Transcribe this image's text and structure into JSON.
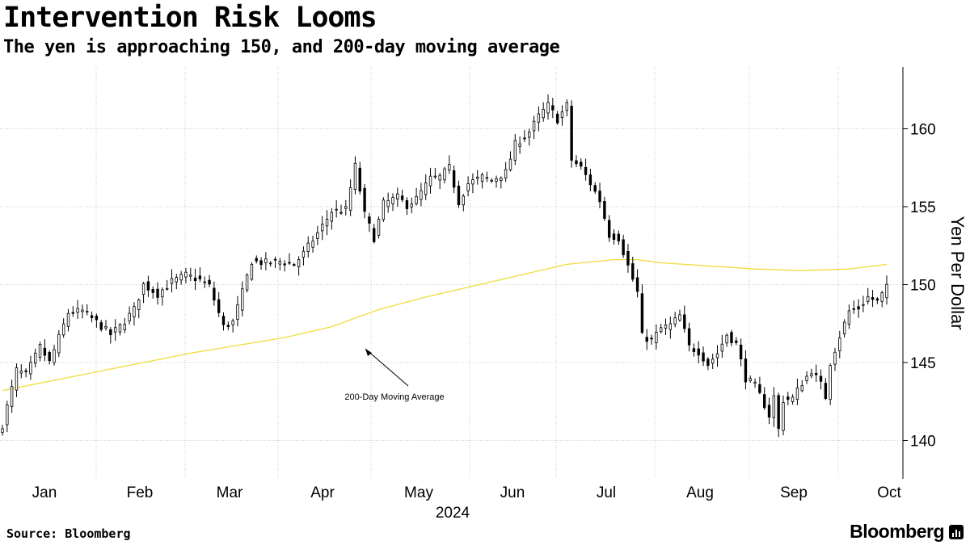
{
  "header": {
    "title": "Intervention Risk Looms",
    "subtitle": "The yen is approaching 150, and 200-day moving average"
  },
  "footer": {
    "source": "Source: Bloomberg",
    "brand": "Bloomberg"
  },
  "colors": {
    "candles": "#000000",
    "moving_average": "#f0dc3c",
    "grid": "#c8c8c8"
  },
  "chart_data": {
    "type": "candlestick",
    "title": "Intervention Risk Looms",
    "subtitle": "The yen is approaching 150, and 200-day moving average",
    "xlabel": "2024",
    "ylabel": "Yen Per Dollar",
    "ylim": [
      137.5,
      164
    ],
    "yticks": [
      140,
      145,
      150,
      155,
      160
    ],
    "months": [
      "Jan",
      "Feb",
      "Mar",
      "Apr",
      "May",
      "Jun",
      "Jul",
      "Aug",
      "Sep",
      "Oct"
    ],
    "year_label": "2024",
    "grid": "dotted",
    "annotation": "200-Day Moving Average",
    "anchors": [
      [
        0,
        141.0
      ],
      [
        3,
        144.5
      ],
      [
        5,
        144.2
      ],
      [
        8,
        146.0
      ],
      [
        10,
        145.0
      ],
      [
        14,
        148.2
      ],
      [
        17,
        148.3
      ],
      [
        20,
        147.6
      ],
      [
        23,
        146.8
      ],
      [
        25,
        147.3
      ],
      [
        28,
        148.4
      ],
      [
        30,
        150.0
      ],
      [
        33,
        149.4
      ],
      [
        36,
        150.2
      ],
      [
        39,
        150.6
      ],
      [
        42,
        150.3
      ],
      [
        44,
        149.9
      ],
      [
        47,
        147.3
      ],
      [
        49,
        147.6
      ],
      [
        51,
        149.5
      ],
      [
        53,
        151.5
      ],
      [
        56,
        151.4
      ],
      [
        59,
        151.5
      ],
      [
        62,
        151.3
      ],
      [
        64,
        152.0
      ],
      [
        67,
        153.3
      ],
      [
        70,
        154.7
      ],
      [
        73,
        154.8
      ],
      [
        75,
        157.6
      ],
      [
        77,
        154.5
      ],
      [
        79,
        153.0
      ],
      [
        81,
        155.2
      ],
      [
        84,
        155.6
      ],
      [
        86,
        155.1
      ],
      [
        88,
        155.5
      ],
      [
        91,
        156.8
      ],
      [
        93,
        156.9
      ],
      [
        95,
        157.5
      ],
      [
        97,
        155.3
      ],
      [
        99,
        156.5
      ],
      [
        102,
        156.9
      ],
      [
        104,
        156.7
      ],
      [
        107,
        157.2
      ],
      [
        109,
        159.0
      ],
      [
        112,
        159.8
      ],
      [
        114,
        160.8
      ],
      [
        116,
        161.5
      ],
      [
        118,
        160.6
      ],
      [
        120,
        161.5
      ],
      [
        121,
        158.0
      ],
      [
        123,
        157.5
      ],
      [
        125,
        156.5
      ],
      [
        127,
        155.4
      ],
      [
        129,
        153.2
      ],
      [
        131,
        153.0
      ],
      [
        133,
        151.2
      ],
      [
        135,
        149.5
      ],
      [
        136,
        146.7
      ],
      [
        138,
        146.4
      ],
      [
        140,
        147.2
      ],
      [
        142,
        147.4
      ],
      [
        144,
        148.0
      ],
      [
        146,
        146.0
      ],
      [
        148,
        145.7
      ],
      [
        150,
        144.9
      ],
      [
        152,
        145.6
      ],
      [
        154,
        146.8
      ],
      [
        156,
        146.2
      ],
      [
        158,
        144.0
      ],
      [
        160,
        143.5
      ],
      [
        162,
        142.3
      ],
      [
        163,
        141.6
      ],
      [
        164,
        142.8
      ],
      [
        165,
        140.7
      ],
      [
        166,
        142.6
      ],
      [
        168,
        142.7
      ],
      [
        170,
        143.7
      ],
      [
        172,
        144.5
      ],
      [
        174,
        143.6
      ],
      [
        175,
        142.8
      ],
      [
        176,
        145.0
      ],
      [
        178,
        146.7
      ],
      [
        180,
        148.3
      ],
      [
        182,
        148.5
      ],
      [
        184,
        149.2
      ],
      [
        186,
        148.9
      ],
      [
        188,
        149.8
      ]
    ],
    "moving_average": [
      [
        0,
        143.2
      ],
      [
        20,
        144.4
      ],
      [
        40,
        145.6
      ],
      [
        60,
        146.6
      ],
      [
        70,
        147.3
      ],
      [
        80,
        148.4
      ],
      [
        90,
        149.2
      ],
      [
        100,
        149.9
      ],
      [
        110,
        150.6
      ],
      [
        120,
        151.3
      ],
      [
        130,
        151.6
      ],
      [
        135,
        151.6
      ],
      [
        140,
        151.4
      ],
      [
        150,
        151.2
      ],
      [
        160,
        151.0
      ],
      [
        170,
        150.9
      ],
      [
        180,
        151.0
      ],
      [
        188,
        151.3
      ]
    ]
  }
}
